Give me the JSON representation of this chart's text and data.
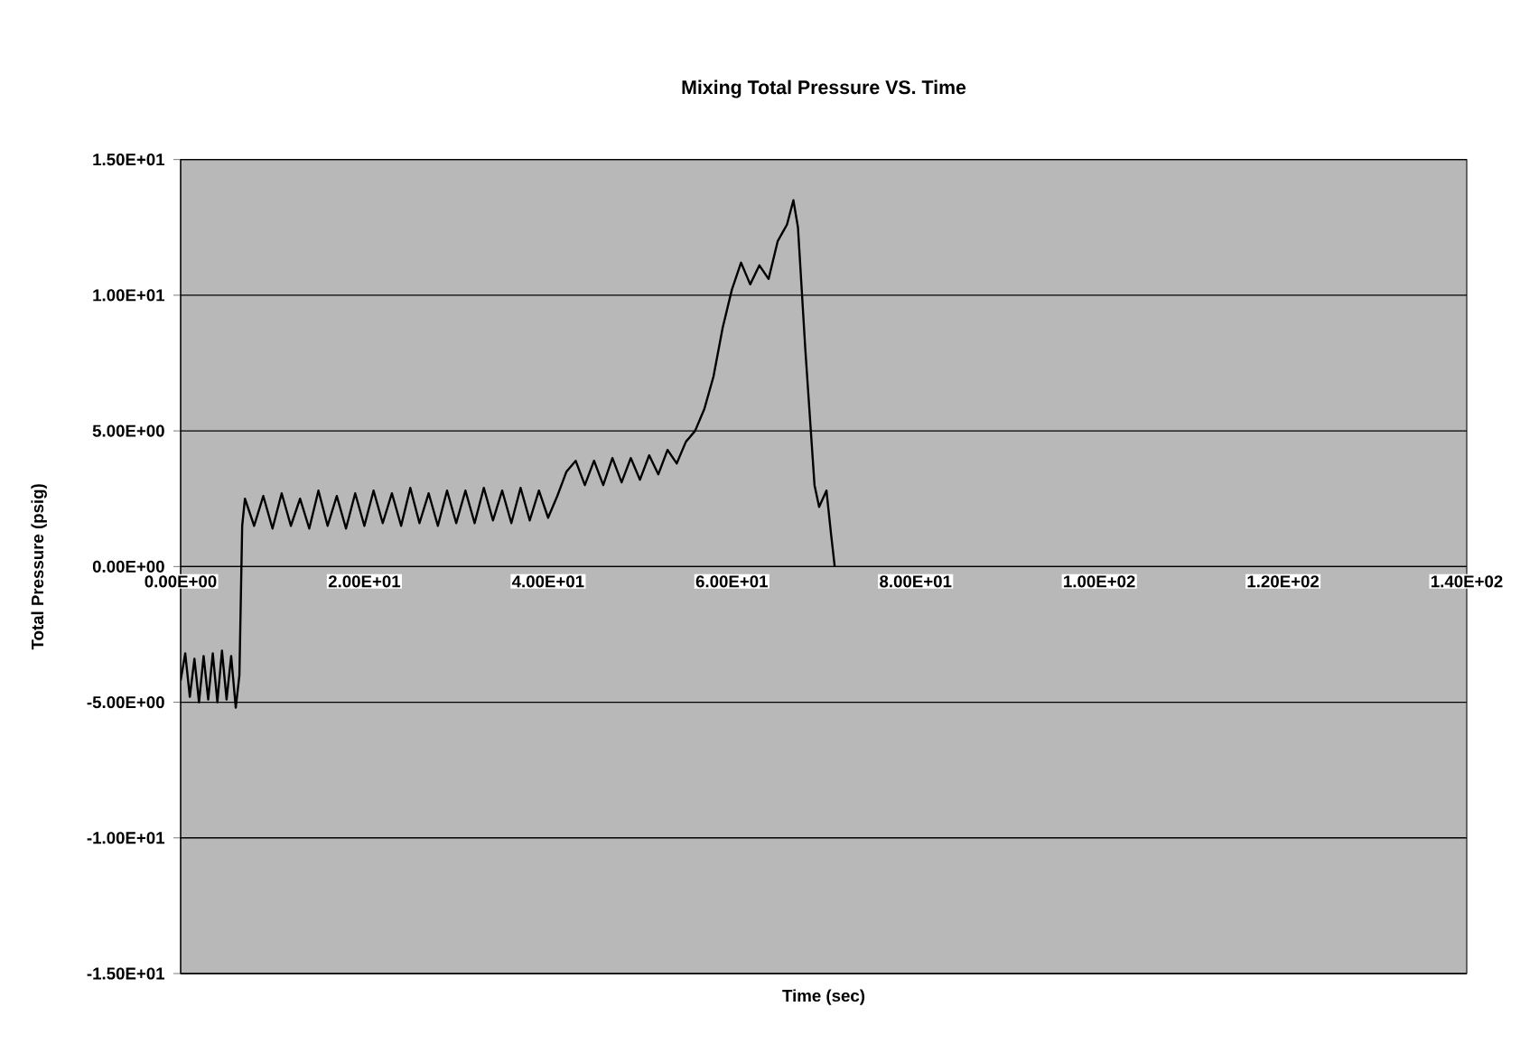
{
  "chart_data": {
    "type": "line",
    "title": "Mixing Total Pressure VS. Time",
    "xlabel": "Time (sec)",
    "ylabel": "Total Pressure (psig)",
    "xlim": [
      0,
      140
    ],
    "ylim": [
      -15,
      15
    ],
    "xticks": [
      {
        "value": 0,
        "label": "0.00E+00"
      },
      {
        "value": 20,
        "label": "2.00E+01"
      },
      {
        "value": 40,
        "label": "4.00E+01"
      },
      {
        "value": 60,
        "label": "6.00E+01"
      },
      {
        "value": 80,
        "label": "8.00E+01"
      },
      {
        "value": 100,
        "label": "1.00E+02"
      },
      {
        "value": 120,
        "label": "1.20E+02"
      },
      {
        "value": 140,
        "label": "1.40E+02"
      }
    ],
    "yticks": [
      {
        "value": -15,
        "label": "-1.50E+01"
      },
      {
        "value": -10,
        "label": "-1.00E+01"
      },
      {
        "value": -5,
        "label": "-5.00E+00"
      },
      {
        "value": 0,
        "label": "0.00E+00"
      },
      {
        "value": 5,
        "label": "5.00E+00"
      },
      {
        "value": 10,
        "label": "1.00E+01"
      },
      {
        "value": 15,
        "label": "1.50E+01"
      }
    ],
    "grid": "y",
    "series": [
      {
        "color": "#000000",
        "x": [
          0,
          0.5,
          1,
          1.5,
          2,
          2.5,
          3,
          3.5,
          4,
          4.5,
          5,
          5.5,
          6,
          6.4,
          6.7,
          7,
          8,
          9,
          10,
          11,
          12,
          13,
          14,
          15,
          16,
          17,
          18,
          19,
          20,
          21,
          22,
          23,
          24,
          25,
          26,
          27,
          28,
          29,
          30,
          31,
          32,
          33,
          34,
          35,
          36,
          37,
          38,
          39,
          40,
          41,
          42,
          43,
          44,
          45,
          46,
          47,
          48,
          49,
          50,
          51,
          52,
          53,
          54,
          55,
          56,
          57,
          58,
          59,
          60,
          61,
          62,
          63,
          64,
          65,
          66,
          66.7,
          67.2,
          68,
          69,
          69.5,
          70.3,
          70.8,
          71.2
        ],
        "values": [
          -4.2,
          -3.2,
          -4.8,
          -3.4,
          -5,
          -3.3,
          -4.9,
          -3.2,
          -5,
          -3.1,
          -4.9,
          -3.3,
          -5.2,
          -4,
          1.5,
          2.5,
          1.5,
          2.6,
          1.4,
          2.7,
          1.5,
          2.5,
          1.4,
          2.8,
          1.5,
          2.6,
          1.4,
          2.7,
          1.5,
          2.8,
          1.6,
          2.7,
          1.5,
          2.9,
          1.6,
          2.7,
          1.5,
          2.8,
          1.6,
          2.8,
          1.6,
          2.9,
          1.7,
          2.8,
          1.6,
          2.9,
          1.7,
          2.8,
          1.8,
          2.6,
          3.5,
          3.9,
          3.0,
          3.9,
          3.0,
          4.0,
          3.1,
          4.0,
          3.2,
          4.1,
          3.4,
          4.3,
          3.8,
          4.6,
          5.0,
          5.8,
          7.0,
          8.8,
          10.2,
          11.2,
          10.4,
          11.1,
          10.6,
          12.0,
          12.6,
          13.5,
          12.5,
          8,
          3,
          2.2,
          2.8,
          1.2,
          0
        ]
      }
    ]
  }
}
